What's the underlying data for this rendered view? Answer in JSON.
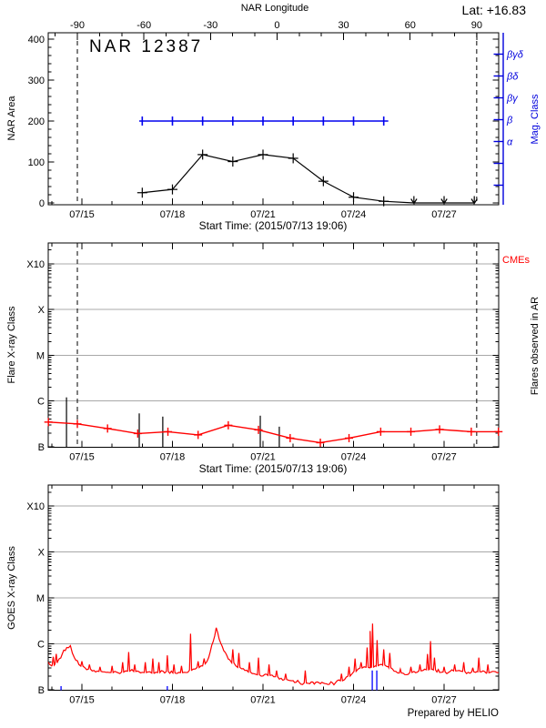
{
  "meta": {
    "lat_label": "Lat: +16.83",
    "start_time_label": "Start Time: (2015/07/13 19:06)",
    "prepared_by": "Prepared by HELIO"
  },
  "chart_data": [
    {
      "id": "nar-area-panel",
      "type": "line",
      "title": "NAR 12387",
      "ylabel": "NAR Area",
      "ylim": [
        0,
        415
      ],
      "yticks": [
        0,
        100,
        200,
        300,
        400
      ],
      "y_minor_step": 20,
      "top_axis": {
        "label": "NAR Longitude",
        "major_ticks": [
          -90,
          -60,
          -30,
          0,
          30,
          60,
          90
        ],
        "minor_step": 10,
        "day_at_minus90": 14.85,
        "deg_per_day": 13.605
      },
      "x_axis": {
        "xlim_days": [
          13.885,
          28.81
        ],
        "major_days": [
          15,
          18,
          21,
          24,
          27
        ],
        "labels": [
          "07/15",
          "07/18",
          "07/21",
          "07/24",
          "07/27"
        ],
        "minor_step_days": 1,
        "xlabel": "Start Time: (2015/07/13 19:06)"
      },
      "series": [
        {
          "name": "nar-area",
          "color": "#000000",
          "marker": "plus",
          "days": [
            17,
            18,
            19,
            20,
            21,
            22,
            23,
            24,
            25,
            26,
            27,
            28
          ],
          "values": [
            25,
            33,
            118,
            101,
            118,
            109,
            53,
            14,
            4,
            0,
            0,
            0
          ],
          "upper_limit_arrow_days": [
            26,
            27,
            28
          ]
        },
        {
          "name": "mag-class-history",
          "color": "#0000ee",
          "level_label": "β",
          "area_axis_level": 200,
          "day_start": 16.9,
          "day_end": 25.15,
          "tick_days": [
            17,
            18,
            19,
            20,
            21,
            22,
            23,
            24,
            25
          ]
        }
      ],
      "right_axis": {
        "label": "Mag. Class",
        "color": "#0000dd",
        "tick_labels": [
          "βγδ",
          "βδ",
          "βγ",
          "β",
          "α",
          "",
          ""
        ]
      },
      "dashed_guides_days": [
        14.85,
        28.08
      ]
    },
    {
      "id": "flare-xray-panel",
      "type": "line",
      "ylabel": "Flare X-ray Class",
      "ytick_labels": [
        "B",
        "C",
        "M",
        "X",
        "X10"
      ],
      "ylim_decades": [
        0,
        4.45
      ],
      "grid_levels": [
        1,
        2,
        3,
        4
      ],
      "right_top_label": "CMEs",
      "right_label": "Flares observed in AR",
      "x_axis": {
        "xlim_days": [
          13.885,
          28.81
        ],
        "major_days": [
          15,
          18,
          21,
          24,
          27
        ],
        "labels": [
          "07/15",
          "07/18",
          "07/21",
          "07/24",
          "07/27"
        ],
        "minor_step_days": 1,
        "xlabel": "Start Time: (2015/07/13 19:06)"
      },
      "background_series": {
        "name": "daily-background-flux",
        "color": "#ff0000",
        "marker": "plus",
        "days": [
          13.89,
          14.85,
          15.85,
          16.85,
          17.85,
          18.85,
          19.85,
          20.85,
          21.9,
          22.9,
          23.85,
          24.9,
          25.9,
          26.85,
          27.9,
          28.8
        ],
        "levels": [
          0.54,
          0.5,
          0.4,
          0.29,
          0.33,
          0.26,
          0.47,
          0.37,
          0.19,
          0.09,
          0.19,
          0.33,
          0.33,
          0.38,
          0.33,
          0.33
        ]
      },
      "flares": {
        "name": "flare-events",
        "color": "#000000",
        "events": [
          [
            14.49,
            1.08
          ],
          [
            16.9,
            0.73
          ],
          [
            17.68,
            0.66
          ],
          [
            20.91,
            0.68
          ],
          [
            21.54,
            0.44
          ]
        ]
      },
      "dashed_guides_days": [
        14.85,
        28.08
      ]
    },
    {
      "id": "goes-xray-panel",
      "type": "line",
      "ylabel": "GOES X-ray Class",
      "ytick_labels": [
        "B",
        "C",
        "M",
        "X",
        "X10"
      ],
      "ylim_decades": [
        0,
        4.45
      ],
      "grid_levels": [
        1,
        2,
        3,
        4
      ],
      "x_axis": {
        "xlim_days": [
          13.885,
          28.81
        ],
        "major_days": [
          15,
          18,
          21,
          24,
          27
        ],
        "labels": [
          "07/15",
          "07/18",
          "07/21",
          "07/24",
          "07/27"
        ],
        "minor_step_days": 1,
        "xlabel": ""
      },
      "curve": {
        "name": "goes-flux",
        "color": "#ff0000",
        "anchors": [
          [
            13.88,
            0.6
          ],
          [
            14.0,
            0.52
          ],
          [
            14.1,
            0.55
          ],
          [
            14.2,
            0.62
          ],
          [
            14.35,
            0.78
          ],
          [
            14.5,
            0.92
          ],
          [
            14.62,
            0.96
          ],
          [
            14.75,
            0.7
          ],
          [
            14.9,
            0.55
          ],
          [
            15.1,
            0.48
          ],
          [
            15.4,
            0.42
          ],
          [
            15.8,
            0.38
          ],
          [
            16.2,
            0.37
          ],
          [
            16.6,
            0.41
          ],
          [
            17.0,
            0.38
          ],
          [
            17.4,
            0.36
          ],
          [
            17.8,
            0.4
          ],
          [
            18.1,
            0.36
          ],
          [
            18.4,
            0.38
          ],
          [
            18.7,
            0.45
          ],
          [
            19.0,
            0.52
          ],
          [
            19.2,
            0.7
          ],
          [
            19.35,
            1.05
          ],
          [
            19.45,
            1.35
          ],
          [
            19.55,
            1.1
          ],
          [
            19.7,
            0.85
          ],
          [
            19.9,
            0.65
          ],
          [
            20.1,
            0.52
          ],
          [
            20.4,
            0.42
          ],
          [
            20.7,
            0.35
          ],
          [
            21.0,
            0.3
          ],
          [
            21.3,
            0.32
          ],
          [
            21.6,
            0.25
          ],
          [
            21.9,
            0.2
          ],
          [
            22.2,
            0.16
          ],
          [
            22.5,
            0.14
          ],
          [
            22.8,
            0.17
          ],
          [
            23.1,
            0.13
          ],
          [
            23.4,
            0.15
          ],
          [
            23.7,
            0.22
          ],
          [
            23.95,
            0.35
          ],
          [
            24.15,
            0.45
          ],
          [
            24.35,
            0.5
          ],
          [
            24.55,
            0.48
          ],
          [
            24.75,
            0.52
          ],
          [
            24.95,
            0.55
          ],
          [
            25.15,
            0.5
          ],
          [
            25.4,
            0.4
          ],
          [
            25.7,
            0.33
          ],
          [
            26.0,
            0.4
          ],
          [
            26.3,
            0.42
          ],
          [
            26.6,
            0.45
          ],
          [
            26.9,
            0.38
          ],
          [
            27.2,
            0.4
          ],
          [
            27.5,
            0.42
          ],
          [
            27.8,
            0.38
          ],
          [
            28.1,
            0.4
          ],
          [
            28.4,
            0.36
          ],
          [
            28.6,
            0.4
          ],
          [
            28.81,
            0.38
          ]
        ],
        "spikes": [
          [
            14.05,
            0.72
          ],
          [
            14.15,
            0.78
          ],
          [
            15.0,
            0.62
          ],
          [
            15.25,
            0.55
          ],
          [
            15.6,
            0.5
          ],
          [
            16.0,
            0.52
          ],
          [
            16.35,
            0.6
          ],
          [
            16.55,
            0.82
          ],
          [
            16.75,
            0.55
          ],
          [
            17.1,
            0.6
          ],
          [
            17.35,
            0.68
          ],
          [
            17.55,
            0.6
          ],
          [
            17.83,
            0.75
          ],
          [
            18.05,
            0.55
          ],
          [
            18.3,
            0.52
          ],
          [
            18.6,
            1.22
          ],
          [
            18.85,
            0.62
          ],
          [
            19.05,
            0.68
          ],
          [
            20.0,
            0.88
          ],
          [
            20.2,
            0.8
          ],
          [
            20.55,
            0.6
          ],
          [
            20.85,
            0.7
          ],
          [
            21.2,
            0.55
          ],
          [
            21.45,
            0.42
          ],
          [
            21.75,
            0.35
          ],
          [
            22.4,
            0.42
          ],
          [
            23.6,
            0.35
          ],
          [
            23.85,
            0.5
          ],
          [
            24.05,
            0.68
          ],
          [
            24.25,
            0.6
          ],
          [
            24.45,
            0.92
          ],
          [
            24.55,
            1.28
          ],
          [
            24.63,
            1.44
          ],
          [
            24.78,
            1.08
          ],
          [
            25.0,
            0.88
          ],
          [
            25.2,
            0.8
          ],
          [
            25.55,
            0.45
          ],
          [
            25.9,
            0.5
          ],
          [
            26.2,
            0.55
          ],
          [
            26.45,
            0.78
          ],
          [
            26.55,
            1.06
          ],
          [
            26.68,
            0.7
          ],
          [
            27.0,
            0.5
          ],
          [
            27.35,
            0.55
          ],
          [
            27.65,
            0.6
          ],
          [
            27.95,
            0.48
          ],
          [
            28.15,
            0.7
          ],
          [
            28.45,
            0.55
          ]
        ]
      },
      "cme_marks": {
        "color": "#0000ff",
        "small_days": [
          14.31,
          17.83
        ],
        "tall": [
          [
            24.62,
            0.42
          ],
          [
            24.77,
            0.42
          ]
        ]
      }
    }
  ]
}
